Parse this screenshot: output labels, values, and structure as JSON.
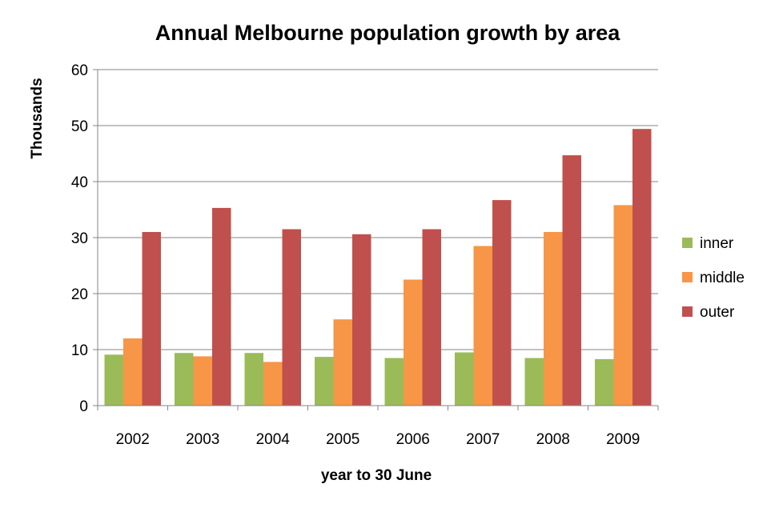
{
  "chart_data": {
    "type": "bar",
    "title": "Annual Melbourne population growth by area",
    "xlabel": "year to 30 June",
    "ylabel": "Thousands",
    "categories": [
      "2002",
      "2003",
      "2004",
      "2005",
      "2006",
      "2007",
      "2008",
      "2009"
    ],
    "series": [
      {
        "name": "inner",
        "color": "#9BBB59",
        "values": [
          9.1,
          9.4,
          9.4,
          8.7,
          8.5,
          9.5,
          8.5,
          8.3
        ]
      },
      {
        "name": "middle",
        "color": "#F79646",
        "values": [
          12.0,
          8.8,
          7.8,
          15.4,
          22.5,
          28.5,
          31.0,
          35.8
        ]
      },
      {
        "name": "outer",
        "color": "#C0504D",
        "values": [
          31.0,
          35.3,
          31.5,
          30.6,
          31.5,
          36.7,
          44.7,
          49.4
        ]
      }
    ],
    "ylim": [
      0,
      60
    ],
    "yticks": [
      0,
      10,
      20,
      30,
      40,
      50,
      60
    ],
    "grid": true,
    "legend_position": "right"
  }
}
